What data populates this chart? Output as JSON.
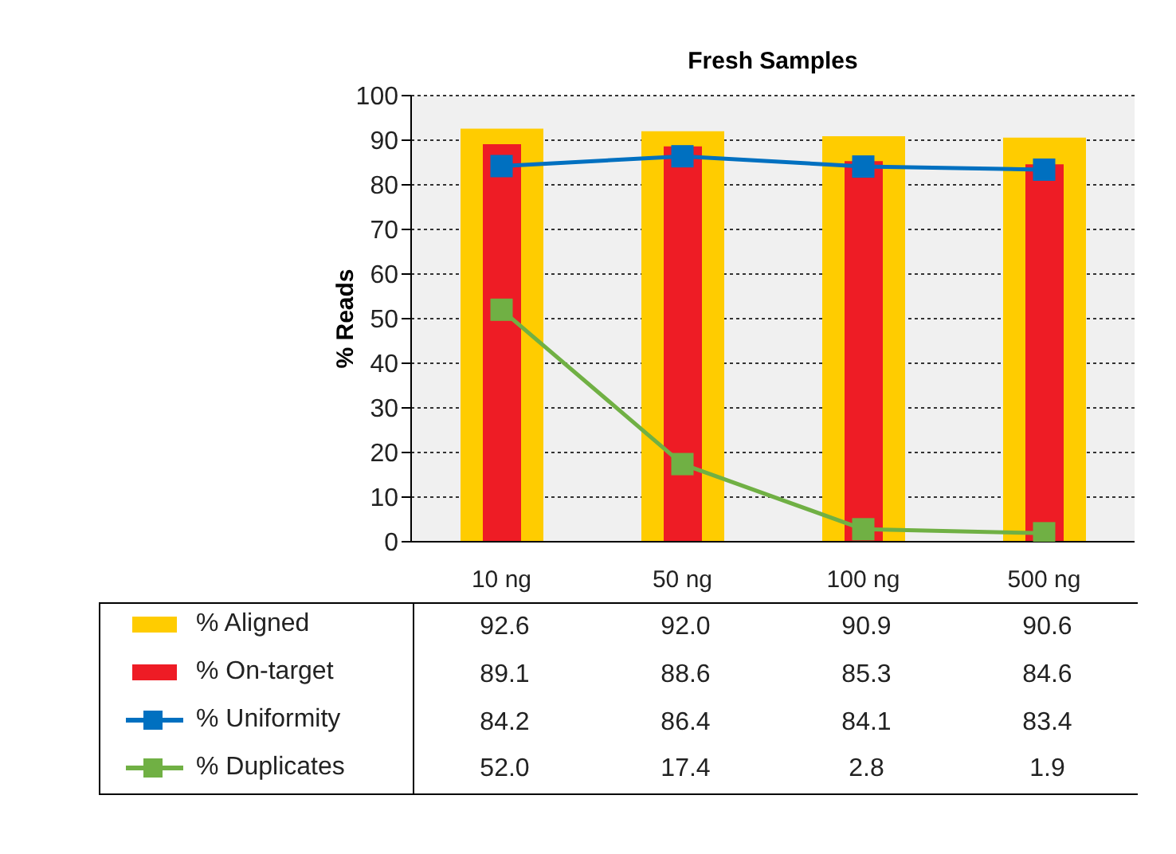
{
  "chart_data": {
    "type": "bar",
    "title": "Fresh Samples",
    "ylabel": "% Reads",
    "categories": [
      "10 ng",
      "50 ng",
      "100 ng",
      "500 ng"
    ],
    "series": [
      {
        "name": "% Aligned",
        "color": "#ffcc00",
        "values": [
          92.6,
          92.0,
          90.9,
          90.6
        ],
        "value_labels": [
          "92.6",
          "92.0",
          "90.9",
          "90.6"
        ]
      },
      {
        "name": "% On-target",
        "color": "#ee1c25",
        "values": [
          89.1,
          88.6,
          85.3,
          84.6
        ],
        "value_labels": [
          "89.1",
          "88.6",
          "85.3",
          "84.6"
        ]
      },
      {
        "name": "% Uniformity",
        "type": "line",
        "color": "#0070c0",
        "values": [
          84.2,
          86.4,
          84.1,
          83.4
        ],
        "value_labels": [
          "84.2",
          "86.4",
          "84.1",
          "83.4"
        ]
      },
      {
        "name": "% Duplicates",
        "type": "line",
        "color": "#70b044",
        "values": [
          52.0,
          17.4,
          2.8,
          1.9
        ],
        "value_labels": [
          "52.0",
          "17.4",
          "2.8",
          "1.9"
        ]
      }
    ],
    "ylim": [
      0,
      100
    ],
    "yticks": [
      0,
      10,
      20,
      30,
      40,
      50,
      60,
      70,
      80,
      90,
      100
    ],
    "grid": "y",
    "legend": "bottom",
    "marker": "square",
    "line_style": "solid"
  }
}
